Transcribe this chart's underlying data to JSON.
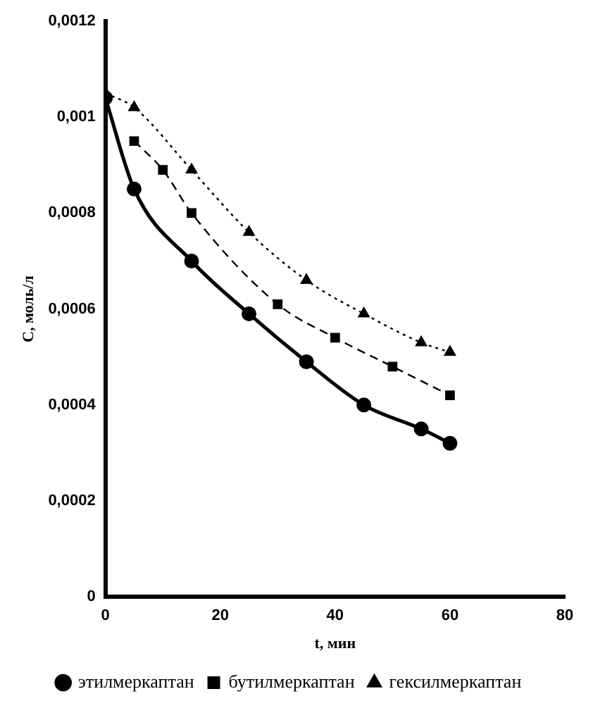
{
  "chart_data": {
    "type": "line",
    "xlabel": "t, мин",
    "ylabel": "C, моль/л",
    "xlim": [
      0,
      80
    ],
    "xticks": [
      0,
      20,
      40,
      60,
      80
    ],
    "ylim": [
      0,
      0.0012
    ],
    "yticks": [
      {
        "value": 0,
        "label": "0"
      },
      {
        "value": 0.0002,
        "label": "0,0002"
      },
      {
        "value": 0.0004,
        "label": "0,0004"
      },
      {
        "value": 0.0006,
        "label": "0,0006"
      },
      {
        "value": 0.0008,
        "label": "0,0008"
      },
      {
        "value": 0.001,
        "label": "0,001"
      },
      {
        "value": 0.0012,
        "label": "0,0012"
      }
    ],
    "grid": false,
    "legend": "bottom",
    "series": [
      {
        "name": "этилмеркаптан",
        "color": "#000000",
        "marker": "circle",
        "line_style": "solid",
        "x": [
          0,
          5,
          15,
          25,
          35,
          45,
          55,
          60
        ],
        "values": [
          0.00104,
          0.00085,
          0.0007,
          0.00059,
          0.00049,
          0.0004,
          0.00035,
          0.00032
        ]
      },
      {
        "name": "бутилмеркаптан",
        "color": "#000000",
        "marker": "square",
        "line_style": "dashed",
        "x": [
          5,
          10,
          15,
          30,
          40,
          50,
          60
        ],
        "values": [
          0.00095,
          0.00089,
          0.0008,
          0.00061,
          0.00054,
          0.00048,
          0.00042
        ]
      },
      {
        "name": "гексилмеркаптан",
        "color": "#000000",
        "marker": "triangle",
        "line_style": "dotted",
        "x": [
          0,
          5,
          15,
          25,
          35,
          45,
          55,
          60
        ],
        "values": [
          0.00105,
          0.00102,
          0.00089,
          0.00076,
          0.00066,
          0.00059,
          0.00053,
          0.00051
        ]
      }
    ]
  }
}
